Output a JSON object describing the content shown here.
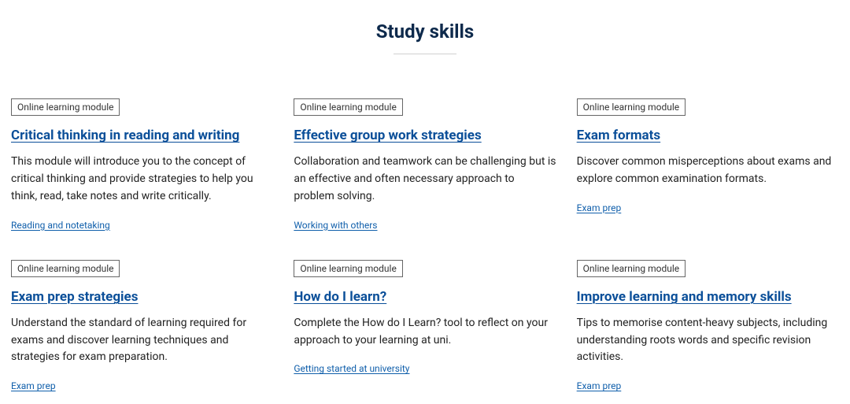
{
  "header": {
    "title": "Study skills"
  },
  "tag_label": "Online learning module",
  "cards": [
    {
      "title": "Critical thinking in reading and writing",
      "desc": "This module will introduce you to the concept of critical thinking and provide strategies to help you think, read, take notes and write critically.",
      "category": "Reading and notetaking"
    },
    {
      "title": "Effective group work strategies",
      "desc": "Collaboration and teamwork can be challenging but is an effective and often necessary approach to problem solving.",
      "category": "Working with others"
    },
    {
      "title": "Exam formats",
      "desc": "Discover common misperceptions about exams and explore common examination formats.",
      "category": "Exam prep"
    },
    {
      "title": "Exam prep strategies",
      "desc": "Understand the standard of learning required for exams and discover learning techniques and strategies for exam preparation.",
      "category": "Exam prep"
    },
    {
      "title": "How do I learn?",
      "desc": "Complete the How do I Learn? tool to reflect on your approach to your learning at uni.",
      "category": "Getting started at university"
    },
    {
      "title": "Improve learning and memory skills",
      "desc": "Tips to memorise content-heavy subjects, including understanding roots words and specific revision activities.",
      "category": "Exam prep"
    }
  ]
}
